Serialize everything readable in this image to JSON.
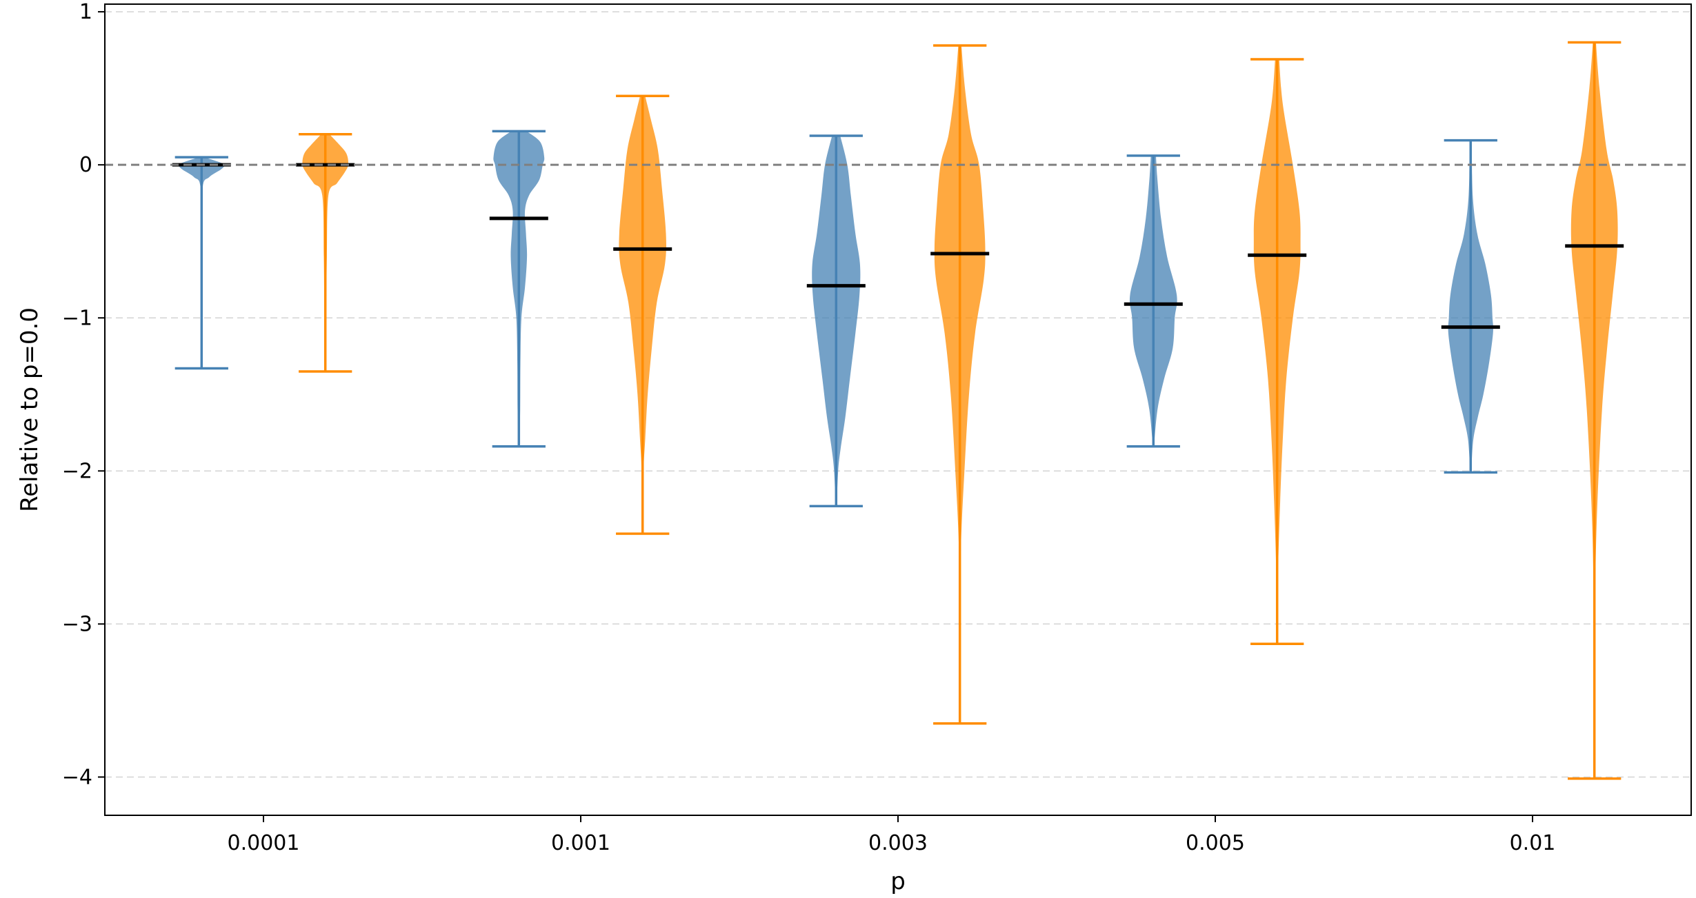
{
  "chart_data": {
    "type": "violin",
    "title": "",
    "xlabel": "p",
    "ylabel": "Relative to p=0.0",
    "categories": [
      "0.0001",
      "0.001",
      "0.003",
      "0.005",
      "0.01"
    ],
    "ylim": [
      -4.25,
      1.05
    ],
    "yticks": [
      1,
      0,
      -1,
      -2,
      -3,
      -4
    ],
    "ytick_labels": [
      "1",
      "0",
      "−1",
      "−2",
      "−3",
      "−4"
    ],
    "reference_line": 0,
    "grid": "horizontal dashed",
    "series": [
      {
        "color": "#4682b4",
        "stats": [
          {
            "min": -1.33,
            "max": 0.05,
            "median": 0.0
          },
          {
            "min": -1.84,
            "max": 0.22,
            "median": -0.35
          },
          {
            "min": -2.23,
            "max": 0.19,
            "median": -0.79
          },
          {
            "min": -1.84,
            "max": 0.06,
            "median": -0.91
          },
          {
            "min": -2.01,
            "max": 0.16,
            "median": -1.06
          }
        ],
        "shapes": [
          [
            [
              0.05,
              0.05
            ],
            [
              0.02,
              0.33
            ],
            [
              0.0,
              0.45
            ],
            [
              -0.03,
              0.38
            ],
            [
              -0.08,
              0.15
            ],
            [
              -0.15,
              0.02
            ],
            [
              -0.5,
              0.015
            ],
            [
              -1.33,
              0.01
            ]
          ],
          [
            [
              0.22,
              0.15
            ],
            [
              0.15,
              0.42
            ],
            [
              0.05,
              0.5
            ],
            [
              0.0,
              0.47
            ],
            [
              -0.1,
              0.4
            ],
            [
              -0.2,
              0.2
            ],
            [
              -0.3,
              0.12
            ],
            [
              -0.45,
              0.14
            ],
            [
              -0.6,
              0.16
            ],
            [
              -0.8,
              0.12
            ],
            [
              -1.0,
              0.05
            ],
            [
              -1.3,
              0.03
            ],
            [
              -1.6,
              0.025
            ],
            [
              -1.84,
              0.01
            ]
          ],
          [
            [
              0.19,
              0.08
            ],
            [
              0.0,
              0.22
            ],
            [
              -0.2,
              0.29
            ],
            [
              -0.45,
              0.38
            ],
            [
              -0.65,
              0.47
            ],
            [
              -0.85,
              0.46
            ],
            [
              -1.1,
              0.38
            ],
            [
              -1.4,
              0.27
            ],
            [
              -1.65,
              0.18
            ],
            [
              -1.85,
              0.09
            ],
            [
              -2.0,
              0.04
            ],
            [
              -2.23,
              0.01
            ]
          ],
          [
            [
              0.06,
              0.05
            ],
            [
              -0.1,
              0.08
            ],
            [
              -0.35,
              0.15
            ],
            [
              -0.6,
              0.27
            ],
            [
              -0.85,
              0.46
            ],
            [
              -1.0,
              0.42
            ],
            [
              -1.2,
              0.38
            ],
            [
              -1.4,
              0.21
            ],
            [
              -1.6,
              0.08
            ],
            [
              -1.84,
              0.01
            ]
          ],
          [
            [
              0.16,
              0.02
            ],
            [
              -0.2,
              0.04
            ],
            [
              -0.45,
              0.13
            ],
            [
              -0.65,
              0.29
            ],
            [
              -0.85,
              0.4
            ],
            [
              -1.0,
              0.43
            ],
            [
              -1.1,
              0.44
            ],
            [
              -1.3,
              0.36
            ],
            [
              -1.5,
              0.25
            ],
            [
              -1.65,
              0.14
            ],
            [
              -1.8,
              0.05
            ],
            [
              -2.01,
              0.01
            ]
          ]
        ]
      },
      {
        "color": "#ff8c00",
        "stats": [
          {
            "min": -1.35,
            "max": 0.2,
            "median": 0.0
          },
          {
            "min": -2.41,
            "max": 0.45,
            "median": -0.55
          },
          {
            "min": -3.65,
            "max": 0.78,
            "median": -0.58
          },
          {
            "min": -3.13,
            "max": 0.69,
            "median": -0.59
          },
          {
            "min": -4.01,
            "max": 0.8,
            "median": -0.53
          }
        ],
        "shapes": [
          [
            [
              0.2,
              0.08
            ],
            [
              0.13,
              0.28
            ],
            [
              0.07,
              0.42
            ],
            [
              0.0,
              0.45
            ],
            [
              -0.05,
              0.38
            ],
            [
              -0.12,
              0.23
            ],
            [
              -0.2,
              0.06
            ],
            [
              -0.6,
              0.03
            ],
            [
              -0.9,
              0.02
            ],
            [
              -1.35,
              0.01
            ]
          ],
          [
            [
              0.45,
              0.05
            ],
            [
              0.3,
              0.16
            ],
            [
              0.1,
              0.3
            ],
            [
              -0.15,
              0.38
            ],
            [
              -0.45,
              0.46
            ],
            [
              -0.65,
              0.44
            ],
            [
              -0.9,
              0.28
            ],
            [
              -1.2,
              0.18
            ],
            [
              -1.5,
              0.1
            ],
            [
              -1.8,
              0.05
            ],
            [
              -2.0,
              0.02
            ],
            [
              -2.41,
              0.01
            ]
          ],
          [
            [
              0.78,
              0.03
            ],
            [
              0.5,
              0.1
            ],
            [
              0.2,
              0.22
            ],
            [
              0.0,
              0.38
            ],
            [
              -0.3,
              0.46
            ],
            [
              -0.55,
              0.5
            ],
            [
              -0.75,
              0.47
            ],
            [
              -1.1,
              0.3
            ],
            [
              -1.5,
              0.18
            ],
            [
              -2.0,
              0.09
            ],
            [
              -2.5,
              0.02
            ],
            [
              -3.0,
              0.015
            ],
            [
              -3.65,
              0.01
            ]
          ],
          [
            [
              0.69,
              0.04
            ],
            [
              0.4,
              0.11
            ],
            [
              0.0,
              0.31
            ],
            [
              -0.3,
              0.44
            ],
            [
              -0.5,
              0.46
            ],
            [
              -0.7,
              0.44
            ],
            [
              -1.0,
              0.31
            ],
            [
              -1.4,
              0.18
            ],
            [
              -1.8,
              0.11
            ],
            [
              -2.2,
              0.06
            ],
            [
              -2.7,
              0.015
            ],
            [
              -3.13,
              0.01
            ]
          ],
          [
            [
              0.8,
              0.03
            ],
            [
              0.5,
              0.1
            ],
            [
              0.1,
              0.24
            ],
            [
              -0.1,
              0.37
            ],
            [
              -0.3,
              0.45
            ],
            [
              -0.55,
              0.45
            ],
            [
              -0.85,
              0.36
            ],
            [
              -1.2,
              0.25
            ],
            [
              -1.6,
              0.15
            ],
            [
              -2.2,
              0.06
            ],
            [
              -2.7,
              0.02
            ],
            [
              -3.3,
              0.015
            ],
            [
              -4.01,
              0.01
            ]
          ]
        ]
      }
    ]
  }
}
